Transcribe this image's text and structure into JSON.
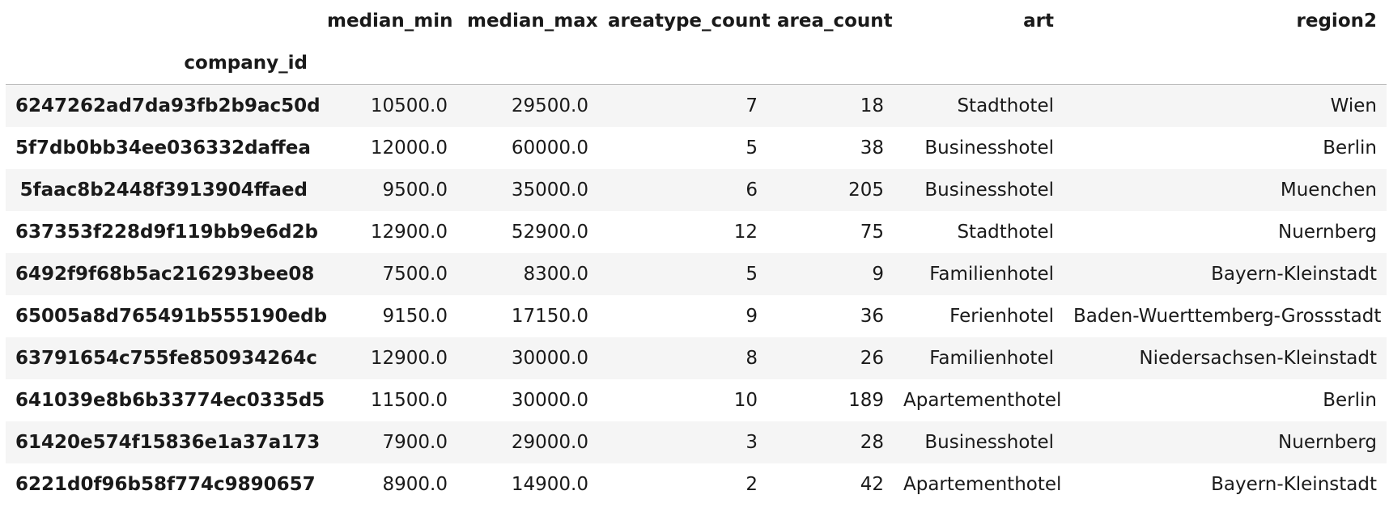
{
  "table": {
    "columns": [
      "median_min",
      "median_max",
      "areatype_count",
      "area_count",
      "art",
      "region2"
    ],
    "index_name": "company_id",
    "rows": [
      {
        "index": "6247262ad7da93fb2b9ac50d",
        "cells": [
          "10500.0",
          "29500.0",
          "7",
          "18",
          "Stadthotel",
          "Wien"
        ]
      },
      {
        "index": "5f7db0bb34ee036332daffea",
        "cells": [
          "12000.0",
          "60000.0",
          "5",
          "38",
          "Businesshotel",
          "Berlin"
        ]
      },
      {
        "index": "5faac8b2448f3913904ffaed",
        "cells": [
          "9500.0",
          "35000.0",
          "6",
          "205",
          "Businesshotel",
          "Muenchen"
        ]
      },
      {
        "index": "637353f228d9f119bb9e6d2b",
        "cells": [
          "12900.0",
          "52900.0",
          "12",
          "75",
          "Stadthotel",
          "Nuernberg"
        ]
      },
      {
        "index": "6492f9f68b5ac216293bee08",
        "cells": [
          "7500.0",
          "8300.0",
          "5",
          "9",
          "Familienhotel",
          "Bayern-Kleinstadt"
        ]
      },
      {
        "index": "65005a8d765491b555190edb",
        "cells": [
          "9150.0",
          "17150.0",
          "9",
          "36",
          "Ferienhotel",
          "Baden-Wuerttemberg-Grossstadt"
        ]
      },
      {
        "index": "63791654c755fe850934264c",
        "cells": [
          "12900.0",
          "30000.0",
          "8",
          "26",
          "Familienhotel",
          "Niedersachsen-Kleinstadt"
        ]
      },
      {
        "index": "641039e8b6b33774ec0335d5",
        "cells": [
          "11500.0",
          "30000.0",
          "10",
          "189",
          "Apartementhotel",
          "Berlin"
        ]
      },
      {
        "index": "61420e574f15836e1a37a173",
        "cells": [
          "7900.0",
          "29000.0",
          "3",
          "28",
          "Businesshotel",
          "Nuernberg"
        ]
      },
      {
        "index": "6221d0f96b58f774c9890657",
        "cells": [
          "8900.0",
          "14900.0",
          "2",
          "42",
          "Apartementhotel",
          "Bayern-Kleinstadt"
        ]
      }
    ]
  }
}
